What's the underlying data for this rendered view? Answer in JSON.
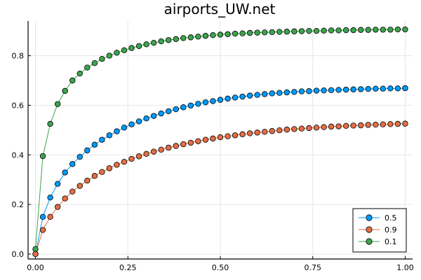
{
  "chart_data": {
    "type": "line",
    "title": "airports_UW.net",
    "xlabel": "",
    "ylabel": "",
    "xlim": [
      -0.02,
      1.02
    ],
    "ylim": [
      -0.02,
      0.94
    ],
    "xticks": [
      0.0,
      0.25,
      0.5,
      0.75,
      1.0
    ],
    "xtick_labels": [
      "0.00",
      "0.25",
      "0.50",
      "0.75",
      "1.00"
    ],
    "yticks": [
      0.0,
      0.2,
      0.4,
      0.6,
      0.8
    ],
    "ytick_labels": [
      "0.0",
      "0.2",
      "0.4",
      "0.6",
      "0.8"
    ],
    "grid": true,
    "legend_position": "bottom-right",
    "x": [
      0.0,
      0.02,
      0.04,
      0.06,
      0.08,
      0.1,
      0.12,
      0.14,
      0.16,
      0.18,
      0.2,
      0.22,
      0.24,
      0.26,
      0.28,
      0.3,
      0.32,
      0.34,
      0.36,
      0.38,
      0.4,
      0.42,
      0.44,
      0.46,
      0.48,
      0.5,
      0.52,
      0.54,
      0.56,
      0.58,
      0.6,
      0.62,
      0.64,
      0.66,
      0.68,
      0.7,
      0.72,
      0.74,
      0.76,
      0.78,
      0.8,
      0.82,
      0.84,
      0.86,
      0.88,
      0.9,
      0.92,
      0.94,
      0.96,
      0.98,
      1.0
    ],
    "series": [
      {
        "name": "0.5",
        "color": "#009af9",
        "values": [
          0.0,
          0.15,
          0.228,
          0.283,
          0.329,
          0.363,
          0.392,
          0.418,
          0.441,
          0.461,
          0.479,
          0.495,
          0.51,
          0.523,
          0.535,
          0.547,
          0.557,
          0.567,
          0.576,
          0.584,
          0.592,
          0.599,
          0.606,
          0.612,
          0.617,
          0.622,
          0.627,
          0.631,
          0.635,
          0.639,
          0.642,
          0.645,
          0.648,
          0.65,
          0.652,
          0.654,
          0.656,
          0.657,
          0.659,
          0.66,
          0.661,
          0.662,
          0.663,
          0.664,
          0.665,
          0.666,
          0.667,
          0.667,
          0.668,
          0.668,
          0.669
        ]
      },
      {
        "name": "0.9",
        "color": "#e26f46",
        "values": [
          0.0,
          0.097,
          0.15,
          0.19,
          0.224,
          0.252,
          0.275,
          0.296,
          0.315,
          0.331,
          0.346,
          0.36,
          0.372,
          0.384,
          0.394,
          0.404,
          0.413,
          0.421,
          0.429,
          0.436,
          0.443,
          0.449,
          0.455,
          0.461,
          0.466,
          0.471,
          0.475,
          0.479,
          0.483,
          0.487,
          0.49,
          0.493,
          0.496,
          0.499,
          0.502,
          0.504,
          0.506,
          0.508,
          0.51,
          0.512,
          0.514,
          0.515,
          0.517,
          0.518,
          0.519,
          0.521,
          0.522,
          0.523,
          0.524,
          0.525,
          0.526
        ]
      },
      {
        "name": "0.1",
        "color": "#3da44d",
        "values": [
          0.02,
          0.395,
          0.525,
          0.605,
          0.658,
          0.7,
          0.728,
          0.752,
          0.77,
          0.787,
          0.8,
          0.812,
          0.822,
          0.831,
          0.839,
          0.846,
          0.852,
          0.858,
          0.863,
          0.867,
          0.871,
          0.874,
          0.877,
          0.88,
          0.883,
          0.885,
          0.887,
          0.889,
          0.89,
          0.892,
          0.893,
          0.894,
          0.895,
          0.896,
          0.897,
          0.898,
          0.899,
          0.9,
          0.9,
          0.901,
          0.902,
          0.902,
          0.903,
          0.903,
          0.904,
          0.904,
          0.905,
          0.905,
          0.905,
          0.906,
          0.906
        ]
      }
    ]
  }
}
